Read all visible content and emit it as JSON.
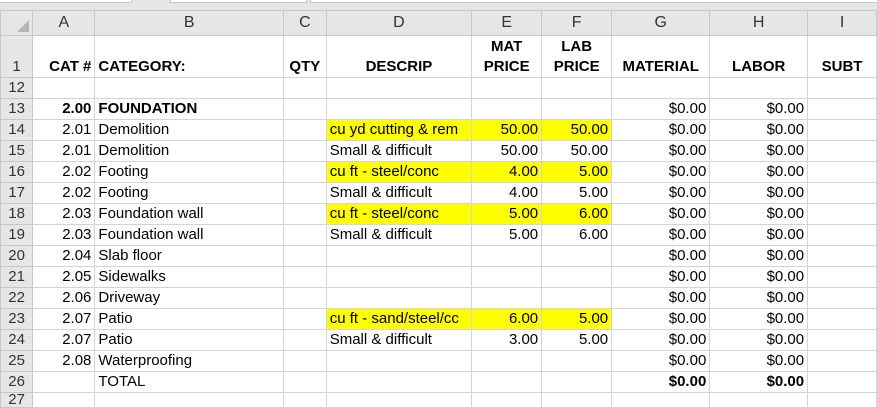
{
  "columns": [
    "A",
    "B",
    "C",
    "D",
    "E",
    "F",
    "G",
    "H",
    "I"
  ],
  "header_row": {
    "row": "1",
    "cat": "CAT #",
    "category": "CATEGORY:",
    "qty": "QTY",
    "descrip": "DESCRIP",
    "mat_price": [
      "MAT",
      "PRICE"
    ],
    "lab_price": [
      "LAB",
      "PRICE"
    ],
    "material": "MATERIAL",
    "labor": "LABOR",
    "subtotal": "SUBT"
  },
  "highlight_color": "#ffff00",
  "rows": [
    {
      "row": "12",
      "cat": "",
      "category": "",
      "descrip": "",
      "mat": "",
      "lab": "",
      "material": "",
      "labor": "",
      "hl": false,
      "bold": false
    },
    {
      "row": "13",
      "cat": "2.00",
      "category": "FOUNDATION",
      "descrip": "",
      "mat": "",
      "lab": "",
      "material": "$0.00",
      "labor": "$0.00",
      "hl": false,
      "bold": true
    },
    {
      "row": "14",
      "cat": "2.01",
      "category": "Demolition",
      "descrip": "cu yd cutting & rem",
      "mat": "50.00",
      "lab": "50.00",
      "material": "$0.00",
      "labor": "$0.00",
      "hl": true,
      "bold": false
    },
    {
      "row": "15",
      "cat": "2.01",
      "category": "Demolition",
      "descrip": "Small & difficult",
      "mat": "50.00",
      "lab": "50.00",
      "material": "$0.00",
      "labor": "$0.00",
      "hl": false,
      "bold": false
    },
    {
      "row": "16",
      "cat": "2.02",
      "category": "Footing",
      "descrip": "cu ft - steel/conc",
      "mat": "4.00",
      "lab": "5.00",
      "material": "$0.00",
      "labor": "$0.00",
      "hl": true,
      "bold": false
    },
    {
      "row": "17",
      "cat": "2.02",
      "category": "Footing",
      "descrip": "Small & difficult",
      "mat": "4.00",
      "lab": "5.00",
      "material": "$0.00",
      "labor": "$0.00",
      "hl": false,
      "bold": false
    },
    {
      "row": "18",
      "cat": "2.03",
      "category": "Foundation wall",
      "descrip": "cu ft - steel/conc",
      "mat": "5.00",
      "lab": "6.00",
      "material": "$0.00",
      "labor": "$0.00",
      "hl": true,
      "bold": false
    },
    {
      "row": "19",
      "cat": "2.03",
      "category": "Foundation wall",
      "descrip": "Small & difficult",
      "mat": "5.00",
      "lab": "6.00",
      "material": "$0.00",
      "labor": "$0.00",
      "hl": false,
      "bold": false
    },
    {
      "row": "20",
      "cat": "2.04",
      "category": "Slab floor",
      "descrip": "",
      "mat": "",
      "lab": "",
      "material": "$0.00",
      "labor": "$0.00",
      "hl": false,
      "bold": false
    },
    {
      "row": "21",
      "cat": "2.05",
      "category": "Sidewalks",
      "descrip": "",
      "mat": "",
      "lab": "",
      "material": "$0.00",
      "labor": "$0.00",
      "hl": false,
      "bold": false
    },
    {
      "row": "22",
      "cat": "2.06",
      "category": "Driveway",
      "descrip": "",
      "mat": "",
      "lab": "",
      "material": "$0.00",
      "labor": "$0.00",
      "hl": false,
      "bold": false
    },
    {
      "row": "23",
      "cat": "2.07",
      "category": "Patio",
      "descrip": "cu ft - sand/steel/cc",
      "mat": "6.00",
      "lab": "5.00",
      "material": "$0.00",
      "labor": "$0.00",
      "hl": true,
      "bold": false
    },
    {
      "row": "24",
      "cat": "2.07",
      "category": "Patio",
      "descrip": "Small & difficult",
      "mat": "3.00",
      "lab": "5.00",
      "material": "$0.00",
      "labor": "$0.00",
      "hl": false,
      "bold": false
    },
    {
      "row": "25",
      "cat": "2.08",
      "category": "Waterproofing",
      "descrip": "",
      "mat": "",
      "lab": "",
      "material": "$0.00",
      "labor": "$0.00",
      "hl": false,
      "bold": false
    },
    {
      "row": "26",
      "cat": "",
      "category": "TOTAL",
      "descrip": "",
      "mat": "",
      "lab": "",
      "material": "$0.00",
      "labor": "$0.00",
      "hl": false,
      "bold": false,
      "total": true
    },
    {
      "row": "27",
      "cat": "",
      "category": "",
      "descrip": "",
      "mat": "",
      "lab": "",
      "material": "",
      "labor": "",
      "hl": false,
      "bold": false
    }
  ]
}
